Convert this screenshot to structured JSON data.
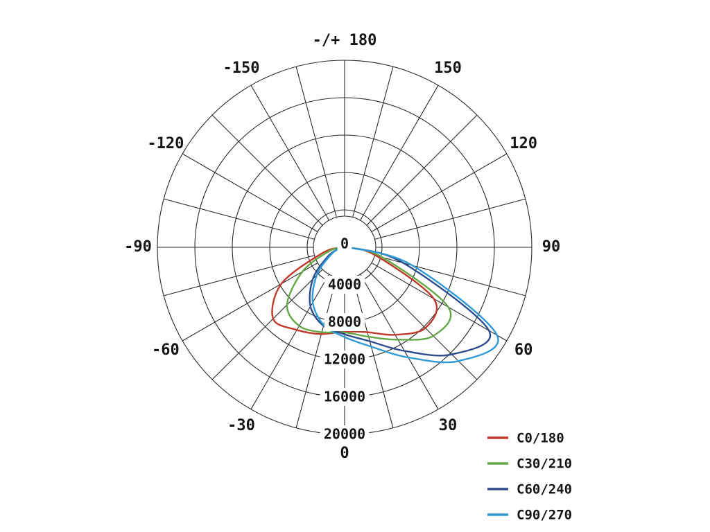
{
  "chart_data": {
    "type": "line",
    "subtype": "polar-photometric",
    "title": "",
    "orientation": "0-at-bottom, 180-at-top, positive-angles-right",
    "rmax": 20000,
    "radial_ticks": [
      0,
      4000,
      8000,
      12000,
      16000,
      20000
    ],
    "radial_tick_labels": [
      "0",
      "4000",
      "8000",
      "12000",
      "16000",
      "20000"
    ],
    "grid": {
      "spoke_step_deg": 15,
      "ring_step": 4000,
      "grid_color": "#2a2a2a"
    },
    "angle_labels": [
      {
        "angle": 180,
        "label": "-/+ 180"
      },
      {
        "angle": 150,
        "label": "150"
      },
      {
        "angle": 120,
        "label": "120"
      },
      {
        "angle": 90,
        "label": "90"
      },
      {
        "angle": 60,
        "label": "60"
      },
      {
        "angle": 30,
        "label": "30"
      },
      {
        "angle": 0,
        "label": "0"
      },
      {
        "angle": -30,
        "label": "-30"
      },
      {
        "angle": -60,
        "label": "-60"
      },
      {
        "angle": -90,
        "label": "-90"
      },
      {
        "angle": -120,
        "label": "-120"
      },
      {
        "angle": -150,
        "label": "-150"
      }
    ],
    "angles_deg": [
      -90,
      -75,
      -60,
      -45,
      -30,
      -15,
      0,
      15,
      30,
      45,
      60,
      75,
      90
    ],
    "series": [
      {
        "name": "C0/180",
        "color": "#c0392b",
        "values": [
          300,
          2500,
          7800,
          10800,
          10200,
          9600,
          9000,
          9400,
          10800,
          12200,
          11000,
          3500,
          300
        ]
      },
      {
        "name": "C30/210",
        "color": "#63a845",
        "values": [
          300,
          1800,
          5200,
          8700,
          9700,
          9400,
          9100,
          9900,
          11400,
          13400,
          12800,
          4200,
          300
        ]
      },
      {
        "name": "C60/240",
        "color": "#2e4d8e",
        "values": [
          200,
          800,
          2200,
          4800,
          7300,
          8700,
          9300,
          10400,
          12800,
          16200,
          17800,
          6500,
          400
        ]
      },
      {
        "name": "C90/270",
        "color": "#2f9ad6",
        "values": [
          200,
          700,
          1800,
          4200,
          6800,
          8600,
          9600,
          11000,
          13600,
          17200,
          18800,
          7500,
          400
        ]
      }
    ],
    "legend": {
      "position": "bottom-right"
    }
  }
}
